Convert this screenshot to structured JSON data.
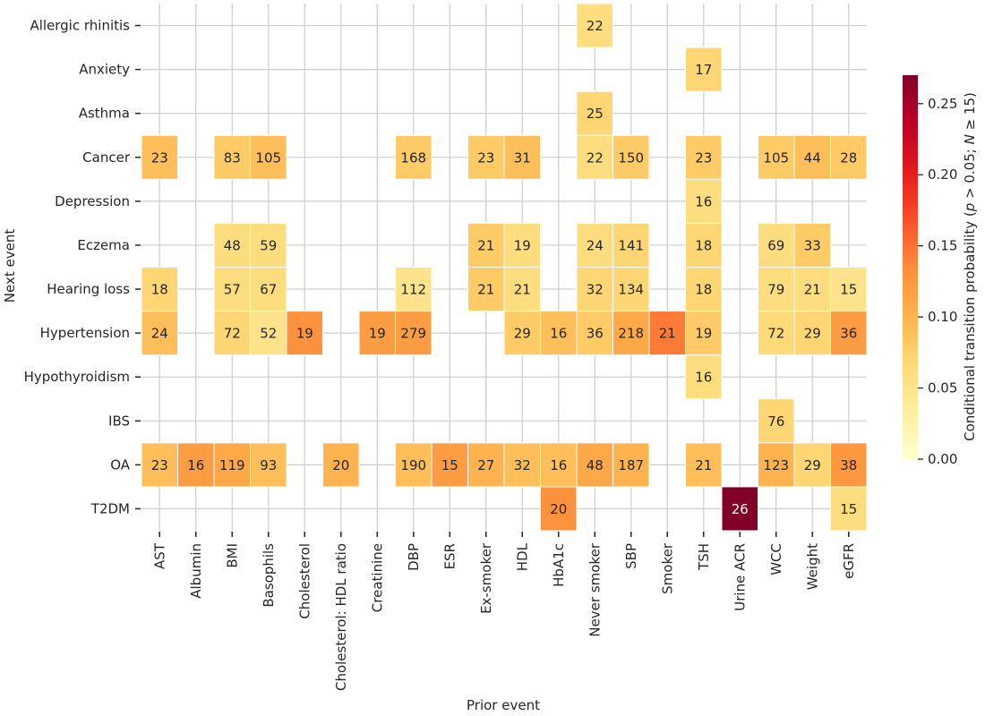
{
  "chart_data": {
    "type": "heatmap",
    "xlabel": "Prior event",
    "ylabel": "Next event",
    "x_categories": [
      "AST",
      "Albumin",
      "BMI",
      "Basophils",
      "Cholesterol",
      "Cholesterol: HDL ratio",
      "Creatinine",
      "DBP",
      "ESR",
      "Ex-smoker",
      "HDL",
      "HbA1c",
      "Never smoker",
      "SBP",
      "Smoker",
      "TSH",
      "Urine ACR",
      "WCC",
      "Weight",
      "eGFR"
    ],
    "y_categories": [
      "Allergic rhinitis",
      "Anxiety",
      "Asthma",
      "Cancer",
      "Depression",
      "Eczema",
      "Hearing loss",
      "Hypertension",
      "Hypothyroidism",
      "IBS",
      "OA",
      "T2DM"
    ],
    "colorbar": {
      "label": "Conditional transition probability (p > 0.05; N ≥ 15)",
      "range": [
        0.0,
        0.27
      ],
      "ticks": [
        "0.00",
        "0.05",
        "0.10",
        "0.15",
        "0.20",
        "0.25"
      ],
      "colormap": "YlOrRd"
    },
    "grid": true,
    "cells": [
      {
        "y": "Allergic rhinitis",
        "x": "Never smoker",
        "n": 22,
        "p": 0.06
      },
      {
        "y": "Anxiety",
        "x": "TSH",
        "n": 17,
        "p": 0.07
      },
      {
        "y": "Asthma",
        "x": "Never smoker",
        "n": 25,
        "p": 0.07
      },
      {
        "y": "Cancer",
        "x": "AST",
        "n": 23,
        "p": 0.09
      },
      {
        "y": "Cancer",
        "x": "BMI",
        "n": 83,
        "p": 0.08
      },
      {
        "y": "Cancer",
        "x": "Basophils",
        "n": 105,
        "p": 0.09
      },
      {
        "y": "Cancer",
        "x": "DBP",
        "n": 168,
        "p": 0.08
      },
      {
        "y": "Cancer",
        "x": "Ex-smoker",
        "n": 23,
        "p": 0.08
      },
      {
        "y": "Cancer",
        "x": "HDL",
        "n": 31,
        "p": 0.09
      },
      {
        "y": "Cancer",
        "x": "Never smoker",
        "n": 22,
        "p": 0.06
      },
      {
        "y": "Cancer",
        "x": "SBP",
        "n": 150,
        "p": 0.08
      },
      {
        "y": "Cancer",
        "x": "TSH",
        "n": 23,
        "p": 0.08
      },
      {
        "y": "Cancer",
        "x": "WCC",
        "n": 105,
        "p": 0.08
      },
      {
        "y": "Cancer",
        "x": "Weight",
        "n": 44,
        "p": 0.09
      },
      {
        "y": "Cancer",
        "x": "eGFR",
        "n": 28,
        "p": 0.08
      },
      {
        "y": "Depression",
        "x": "TSH",
        "n": 16,
        "p": 0.06
      },
      {
        "y": "Eczema",
        "x": "BMI",
        "n": 48,
        "p": 0.06
      },
      {
        "y": "Eczema",
        "x": "Basophils",
        "n": 59,
        "p": 0.06
      },
      {
        "y": "Eczema",
        "x": "Ex-smoker",
        "n": 21,
        "p": 0.08
      },
      {
        "y": "Eczema",
        "x": "HDL",
        "n": 19,
        "p": 0.06
      },
      {
        "y": "Eczema",
        "x": "Never smoker",
        "n": 24,
        "p": 0.06
      },
      {
        "y": "Eczema",
        "x": "SBP",
        "n": 141,
        "p": 0.07
      },
      {
        "y": "Eczema",
        "x": "TSH",
        "n": 18,
        "p": 0.07
      },
      {
        "y": "Eczema",
        "x": "WCC",
        "n": 69,
        "p": 0.06
      },
      {
        "y": "Eczema",
        "x": "Weight",
        "n": 33,
        "p": 0.08
      },
      {
        "y": "Hearing loss",
        "x": "AST",
        "n": 18,
        "p": 0.07
      },
      {
        "y": "Hearing loss",
        "x": "BMI",
        "n": 57,
        "p": 0.06
      },
      {
        "y": "Hearing loss",
        "x": "Basophils",
        "n": 67,
        "p": 0.06
      },
      {
        "y": "Hearing loss",
        "x": "DBP",
        "n": 112,
        "p": 0.05
      },
      {
        "y": "Hearing loss",
        "x": "Ex-smoker",
        "n": 21,
        "p": 0.08
      },
      {
        "y": "Hearing loss",
        "x": "HDL",
        "n": 21,
        "p": 0.06
      },
      {
        "y": "Hearing loss",
        "x": "Never smoker",
        "n": 32,
        "p": 0.07
      },
      {
        "y": "Hearing loss",
        "x": "SBP",
        "n": 134,
        "p": 0.07
      },
      {
        "y": "Hearing loss",
        "x": "TSH",
        "n": 18,
        "p": 0.07
      },
      {
        "y": "Hearing loss",
        "x": "WCC",
        "n": 79,
        "p": 0.06
      },
      {
        "y": "Hearing loss",
        "x": "Weight",
        "n": 21,
        "p": 0.06
      },
      {
        "y": "Hearing loss",
        "x": "eGFR",
        "n": 15,
        "p": 0.05
      },
      {
        "y": "Hypertension",
        "x": "AST",
        "n": 24,
        "p": 0.09
      },
      {
        "y": "Hypertension",
        "x": "BMI",
        "n": 72,
        "p": 0.07
      },
      {
        "y": "Hypertension",
        "x": "Basophils",
        "n": 52,
        "p": 0.05
      },
      {
        "y": "Hypertension",
        "x": "Cholesterol",
        "n": 19,
        "p": 0.13
      },
      {
        "y": "Hypertension",
        "x": "Creatinine",
        "n": 19,
        "p": 0.12
      },
      {
        "y": "Hypertension",
        "x": "DBP",
        "n": 279,
        "p": 0.12
      },
      {
        "y": "Hypertension",
        "x": "HDL",
        "n": 29,
        "p": 0.08
      },
      {
        "y": "Hypertension",
        "x": "HbA1c",
        "n": 16,
        "p": 0.09
      },
      {
        "y": "Hypertension",
        "x": "Never smoker",
        "n": 36,
        "p": 0.08
      },
      {
        "y": "Hypertension",
        "x": "SBP",
        "n": 218,
        "p": 0.11
      },
      {
        "y": "Hypertension",
        "x": "Smoker",
        "n": 21,
        "p": 0.145
      },
      {
        "y": "Hypertension",
        "x": "TSH",
        "n": 19,
        "p": 0.08
      },
      {
        "y": "Hypertension",
        "x": "WCC",
        "n": 72,
        "p": 0.065
      },
      {
        "y": "Hypertension",
        "x": "Weight",
        "n": 29,
        "p": 0.07
      },
      {
        "y": "Hypertension",
        "x": "eGFR",
        "n": 36,
        "p": 0.12
      },
      {
        "y": "Hypothyroidism",
        "x": "TSH",
        "n": 16,
        "p": 0.06
      },
      {
        "y": "IBS",
        "x": "WCC",
        "n": 76,
        "p": 0.07
      },
      {
        "y": "OA",
        "x": "AST",
        "n": 23,
        "p": 0.09
      },
      {
        "y": "OA",
        "x": "Albumin",
        "n": 16,
        "p": 0.12
      },
      {
        "y": "OA",
        "x": "BMI",
        "n": 119,
        "p": 0.11
      },
      {
        "y": "OA",
        "x": "Basophils",
        "n": 93,
        "p": 0.09
      },
      {
        "y": "OA",
        "x": "Cholesterol: HDL ratio",
        "n": 20,
        "p": 0.1
      },
      {
        "y": "OA",
        "x": "DBP",
        "n": 190,
        "p": 0.09
      },
      {
        "y": "OA",
        "x": "ESR",
        "n": 15,
        "p": 0.12
      },
      {
        "y": "OA",
        "x": "Ex-smoker",
        "n": 27,
        "p": 0.1
      },
      {
        "y": "OA",
        "x": "HDL",
        "n": 32,
        "p": 0.09
      },
      {
        "y": "OA",
        "x": "HbA1c",
        "n": 16,
        "p": 0.09
      },
      {
        "y": "OA",
        "x": "Never smoker",
        "n": 48,
        "p": 0.11
      },
      {
        "y": "OA",
        "x": "SBP",
        "n": 187,
        "p": 0.1
      },
      {
        "y": "OA",
        "x": "TSH",
        "n": 21,
        "p": 0.09
      },
      {
        "y": "OA",
        "x": "WCC",
        "n": 123,
        "p": 0.1
      },
      {
        "y": "OA",
        "x": "Weight",
        "n": 29,
        "p": 0.07
      },
      {
        "y": "OA",
        "x": "eGFR",
        "n": 38,
        "p": 0.125
      },
      {
        "y": "T2DM",
        "x": "HbA1c",
        "n": 20,
        "p": 0.13
      },
      {
        "y": "T2DM",
        "x": "Urine ACR",
        "n": 26,
        "p": 0.27
      },
      {
        "y": "T2DM",
        "x": "eGFR",
        "n": 15,
        "p": 0.06
      }
    ]
  }
}
